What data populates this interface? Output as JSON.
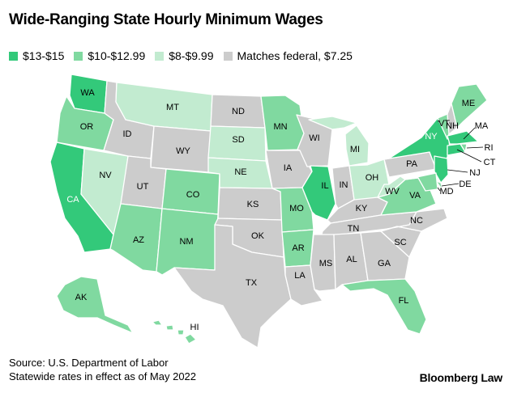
{
  "title": "Wide-Ranging State Hourly Minimum Wages",
  "legend": [
    {
      "label": "$13-$15",
      "color": "#33c97a"
    },
    {
      "label": "$10-$12.99",
      "color": "#80d9a0"
    },
    {
      "label": "$8-$9.99",
      "color": "#c2ebd0"
    },
    {
      "label": "Matches federal, $7.25",
      "color": "#cccccc"
    }
  ],
  "states": [
    {
      "abbr": "WA",
      "tier": 0
    },
    {
      "abbr": "OR",
      "tier": 1
    },
    {
      "abbr": "CA",
      "tier": 0
    },
    {
      "abbr": "NV",
      "tier": 2
    },
    {
      "abbr": "ID",
      "tier": 3
    },
    {
      "abbr": "MT",
      "tier": 2
    },
    {
      "abbr": "WY",
      "tier": 3
    },
    {
      "abbr": "UT",
      "tier": 3
    },
    {
      "abbr": "AZ",
      "tier": 1
    },
    {
      "abbr": "CO",
      "tier": 1
    },
    {
      "abbr": "NM",
      "tier": 1
    },
    {
      "abbr": "ND",
      "tier": 3
    },
    {
      "abbr": "SD",
      "tier": 2
    },
    {
      "abbr": "NE",
      "tier": 2
    },
    {
      "abbr": "KS",
      "tier": 3
    },
    {
      "abbr": "OK",
      "tier": 3
    },
    {
      "abbr": "TX",
      "tier": 3
    },
    {
      "abbr": "MN",
      "tier": 1
    },
    {
      "abbr": "IA",
      "tier": 3
    },
    {
      "abbr": "MO",
      "tier": 1
    },
    {
      "abbr": "AR",
      "tier": 1
    },
    {
      "abbr": "LA",
      "tier": 3
    },
    {
      "abbr": "WI",
      "tier": 3
    },
    {
      "abbr": "IL",
      "tier": 0
    },
    {
      "abbr": "MI",
      "tier": 2
    },
    {
      "abbr": "IN",
      "tier": 3
    },
    {
      "abbr": "OH",
      "tier": 2
    },
    {
      "abbr": "KY",
      "tier": 3
    },
    {
      "abbr": "TN",
      "tier": 3
    },
    {
      "abbr": "MS",
      "tier": 3
    },
    {
      "abbr": "AL",
      "tier": 3
    },
    {
      "abbr": "GA",
      "tier": 3
    },
    {
      "abbr": "FL",
      "tier": 1
    },
    {
      "abbr": "SC",
      "tier": 3
    },
    {
      "abbr": "NC",
      "tier": 3
    },
    {
      "abbr": "VA",
      "tier": 1
    },
    {
      "abbr": "WV",
      "tier": 2
    },
    {
      "abbr": "PA",
      "tier": 3
    },
    {
      "abbr": "NY",
      "tier": 0
    },
    {
      "abbr": "VT",
      "tier": 1
    },
    {
      "abbr": "NH",
      "tier": 3
    },
    {
      "abbr": "ME",
      "tier": 1
    },
    {
      "abbr": "MA",
      "tier": 0
    },
    {
      "abbr": "RI",
      "tier": 1
    },
    {
      "abbr": "CT",
      "tier": 0
    },
    {
      "abbr": "NJ",
      "tier": 0
    },
    {
      "abbr": "DE",
      "tier": 1
    },
    {
      "abbr": "MD",
      "tier": 1
    },
    {
      "abbr": "AK",
      "tier": 1
    },
    {
      "abbr": "HI",
      "tier": 1
    }
  ],
  "footer": {
    "source": "Source: U.S. Department of Labor",
    "note": "Statewide rates in effect as of May 2022"
  },
  "brand": "Bloomberg Law"
}
